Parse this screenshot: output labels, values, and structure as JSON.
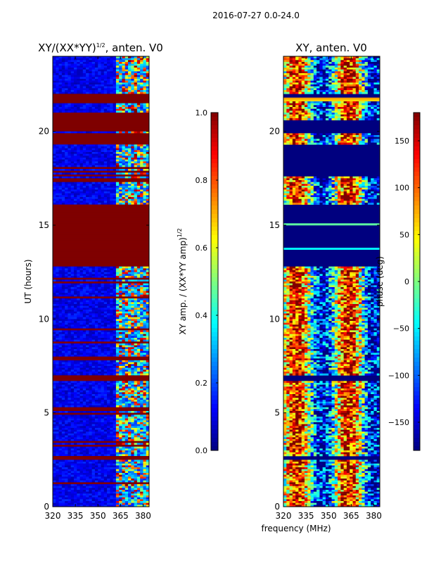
{
  "figure": {
    "suptitle": "2016-07-27 0.0-24.0",
    "shared_xlabel": "frequency (MHz)"
  },
  "colors": {
    "jet": [
      "#00007f",
      "#0000ff",
      "#007fff",
      "#00ffff",
      "#7fff7f",
      "#ffff00",
      "#ff7f00",
      "#ff0000",
      "#7f0000"
    ],
    "frame": "#000000",
    "background": "#ffffff"
  },
  "chart_data": [
    {
      "type": "heatmap",
      "title": "XY/(XX*YY)",
      "title_sup": "1/2",
      "title_tail": ", anten. V0",
      "xlabel": "",
      "ylabel": "UT (hours)",
      "xlim": [
        320,
        384
      ],
      "ylim": [
        0,
        24
      ],
      "xticks": [
        "320",
        "335",
        "350",
        "365",
        "380"
      ],
      "xtick_values": [
        320,
        335,
        350,
        365,
        380
      ],
      "yticks": [
        "0",
        "5",
        "10",
        "15",
        "20"
      ],
      "ytick_values": [
        0,
        5,
        10,
        15,
        20
      ],
      "colorbar": {
        "label": "XY amp. / (XX*YY amp)",
        "label_sup": "1/2",
        "range": [
          0.0,
          1.0
        ],
        "ticks": [
          "0.0",
          "0.2",
          "0.4",
          "0.6",
          "0.8",
          "1.0"
        ],
        "tick_values": [
          0.0,
          0.2,
          0.4,
          0.6,
          0.8,
          1.0
        ]
      },
      "saturated_bands_hours": [
        [
          12.85,
          16.1
        ],
        [
          17.3,
          17.5
        ],
        [
          19.3,
          19.9
        ],
        [
          20.0,
          21.0
        ],
        [
          21.5,
          22.0
        ],
        [
          6.75,
          6.95
        ],
        [
          2.55,
          2.7
        ],
        [
          1.25,
          1.32
        ],
        [
          5.1,
          5.15
        ],
        [
          3.4,
          3.45
        ]
      ],
      "note": "Mostly low values (~0.1) with high-value striations near 362-382 MHz"
    },
    {
      "type": "heatmap",
      "title": "XY, anten. V0",
      "xlabel": "frequency (MHz)",
      "ylabel": "",
      "xlim": [
        320,
        384
      ],
      "ylim": [
        0,
        24
      ],
      "xticks": [
        "320",
        "335",
        "350",
        "365",
        "380"
      ],
      "xtick_values": [
        320,
        335,
        350,
        365,
        380
      ],
      "yticks": [
        "0",
        "5",
        "10",
        "15",
        "20"
      ],
      "ytick_values": [
        0,
        5,
        10,
        15,
        20
      ],
      "colorbar": {
        "label": "phase (deg)",
        "range": [
          -180,
          180
        ],
        "ticks": [
          "−150",
          "−100",
          "−50",
          "0",
          "50",
          "100",
          "150"
        ],
        "tick_values": [
          -150,
          -100,
          -50,
          0,
          50,
          100,
          150
        ]
      },
      "low_phase_bands_hours": [
        [
          12.85,
          16.1
        ],
        [
          17.6,
          19.3
        ],
        [
          19.9,
          20.6
        ],
        [
          21.6,
          22.0
        ],
        [
          6.75,
          6.95
        ],
        [
          2.55,
          2.7
        ]
      ],
      "note": "Noisy phase with vertical red/yellow stripes in active periods"
    }
  ]
}
